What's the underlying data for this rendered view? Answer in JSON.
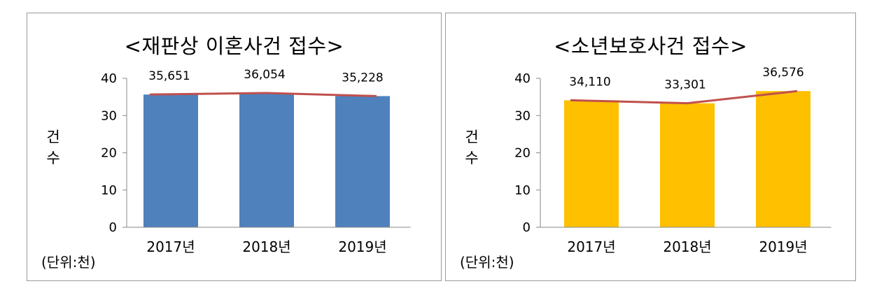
{
  "chart_data": [
    {
      "type": "bar",
      "title": "<재판상 이혼사건 접수>",
      "ylabel": "건수",
      "unit_note": "(단위:천)",
      "categories": [
        "2017년",
        "2018년",
        "2019년"
      ],
      "values": [
        35.651,
        36.054,
        35.228
      ],
      "data_labels": [
        "35,651",
        "36,054",
        "35,228"
      ],
      "ylim": [
        0,
        40
      ],
      "yticks": [
        0,
        10,
        20,
        30,
        40
      ],
      "bar_color": "#4F81BD",
      "line_color": "#C0504D",
      "grid": false,
      "overlay_line": true
    },
    {
      "type": "bar",
      "title": "<소년보호사건 접수>",
      "ylabel": "건수",
      "unit_note": "(단위:천)",
      "categories": [
        "2017년",
        "2018년",
        "2019년"
      ],
      "values": [
        34.11,
        33.301,
        36.576
      ],
      "data_labels": [
        "34,110",
        "33,301",
        "36,576"
      ],
      "ylim": [
        0,
        40
      ],
      "yticks": [
        0,
        10,
        20,
        30,
        40
      ],
      "bar_color": "#FFC000",
      "line_color": "#C0504D",
      "grid": false,
      "overlay_line": true
    }
  ]
}
